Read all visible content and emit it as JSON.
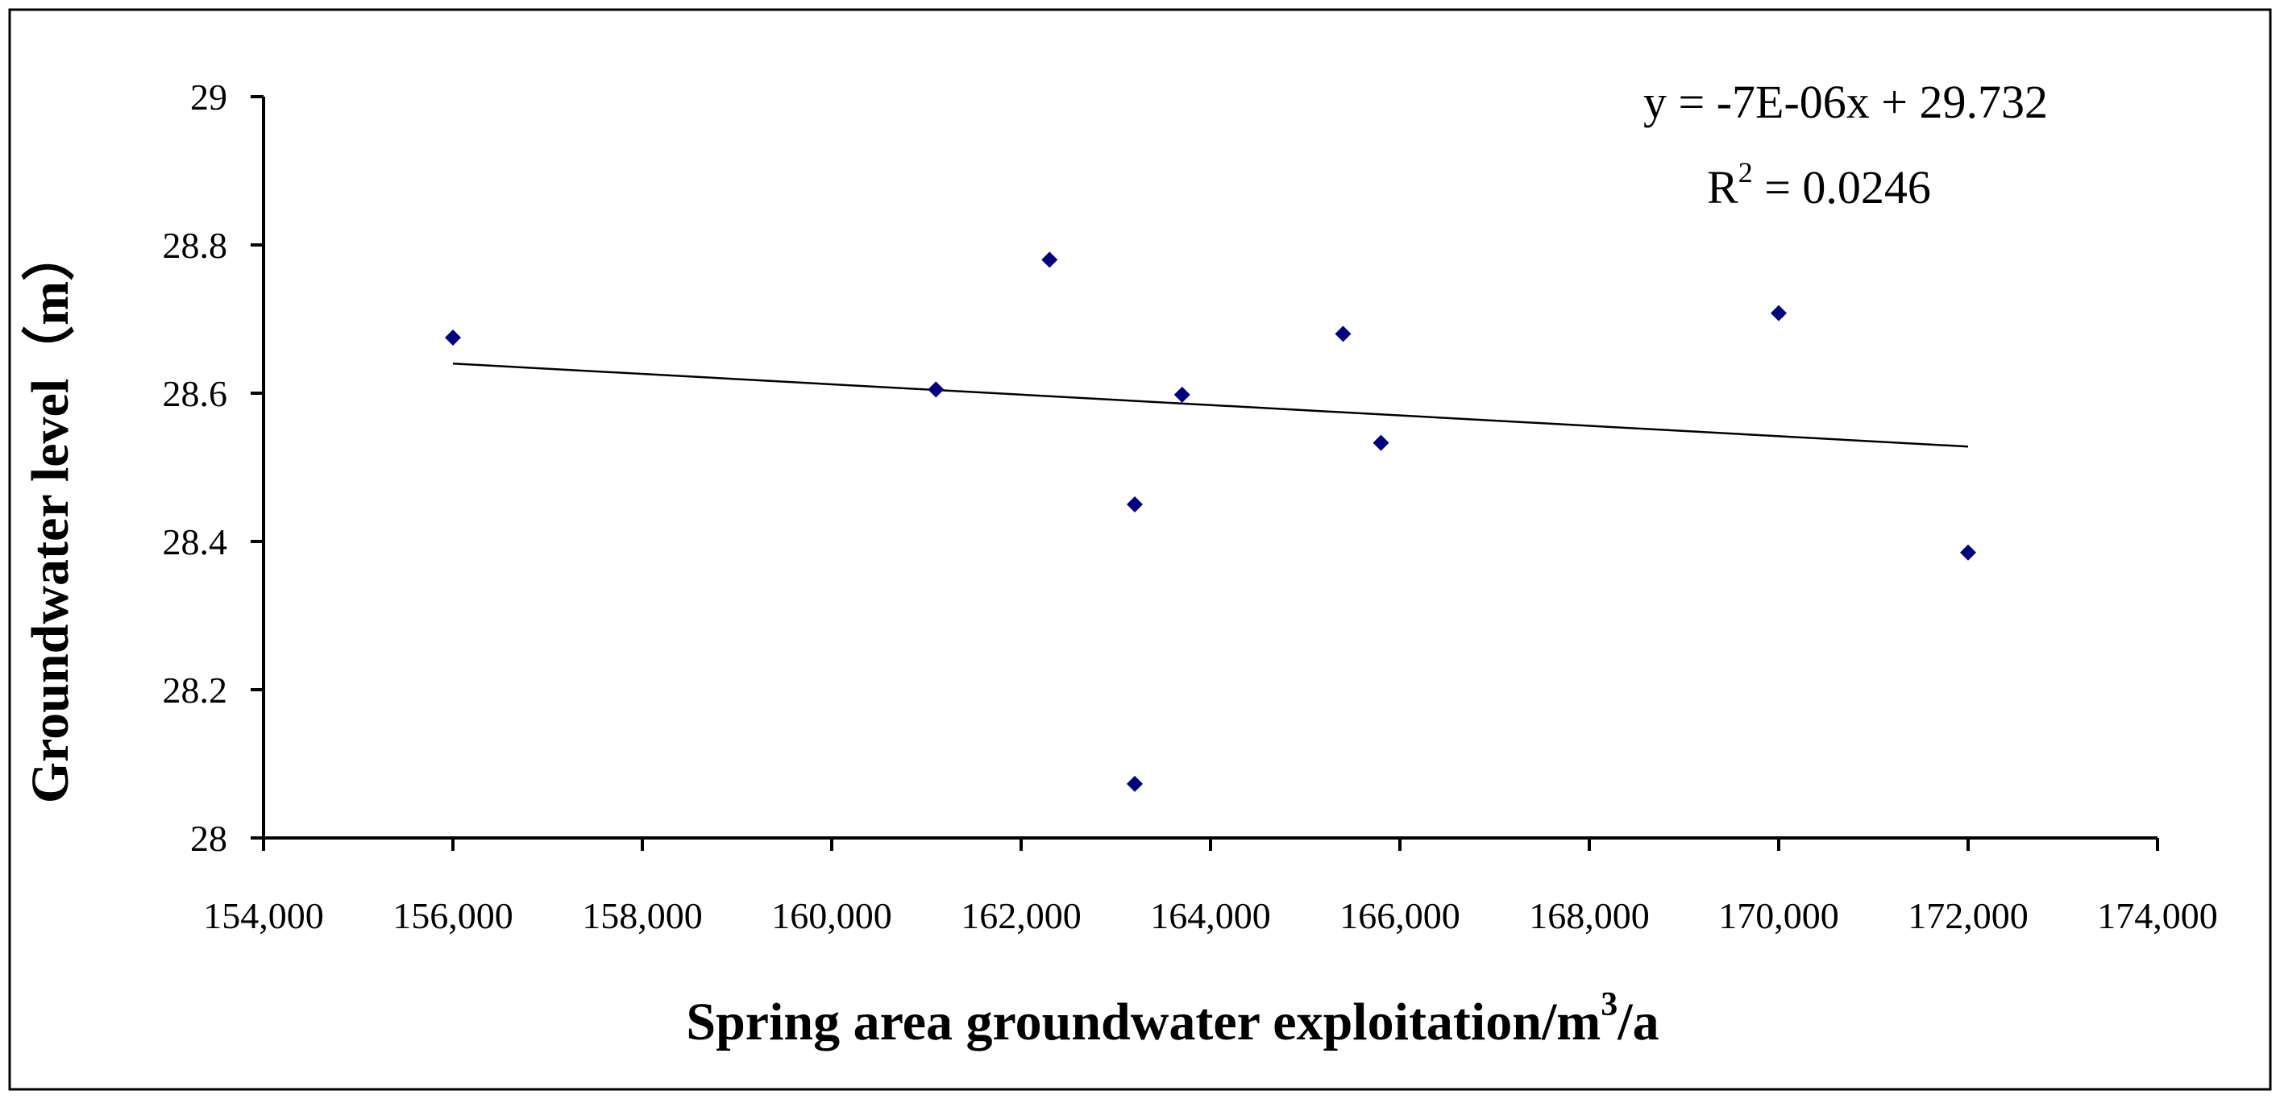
{
  "chart_data": {
    "type": "scatter",
    "xlabel": "Spring area groundwater exploitation/m",
    "xlabel_sup": "3",
    "xlabel_suffix": "/a",
    "ylabel": "Groundwater level（m）",
    "xlim": [
      154000,
      174000
    ],
    "ylim": [
      28,
      29
    ],
    "x_ticks": [
      154000,
      156000,
      158000,
      160000,
      162000,
      164000,
      166000,
      168000,
      170000,
      172000,
      174000
    ],
    "x_tick_labels": [
      "154,000",
      "156,000",
      "158,000",
      "160,000",
      "162,000",
      "164,000",
      "166,000",
      "168,000",
      "170,000",
      "172,000",
      "174,000"
    ],
    "y_ticks": [
      28,
      28.2,
      28.4,
      28.6,
      28.8,
      29
    ],
    "y_tick_labels": [
      "28",
      "28.2",
      "28.4",
      "28.6",
      "28.8",
      "29"
    ],
    "grid": false,
    "marker": "diamond",
    "marker_color": "#000080",
    "trendline": {
      "type": "linear",
      "slope": -7e-06,
      "intercept": 29.732,
      "x_range": [
        156000,
        172000
      ],
      "equation_label": "y = -7E-06x + 29.732",
      "r2_prefix": "R",
      "r2_sup": "2",
      "r2_suffix": " = 0.0246"
    },
    "points": [
      {
        "x": 156000,
        "y": 28.675
      },
      {
        "x": 161100,
        "y": 28.605
      },
      {
        "x": 162300,
        "y": 28.78
      },
      {
        "x": 163200,
        "y": 28.45
      },
      {
        "x": 163200,
        "y": 28.073
      },
      {
        "x": 163700,
        "y": 28.598
      },
      {
        "x": 165400,
        "y": 28.68
      },
      {
        "x": 165800,
        "y": 28.533
      },
      {
        "x": 170000,
        "y": 28.708
      },
      {
        "x": 172000,
        "y": 28.385
      }
    ]
  }
}
